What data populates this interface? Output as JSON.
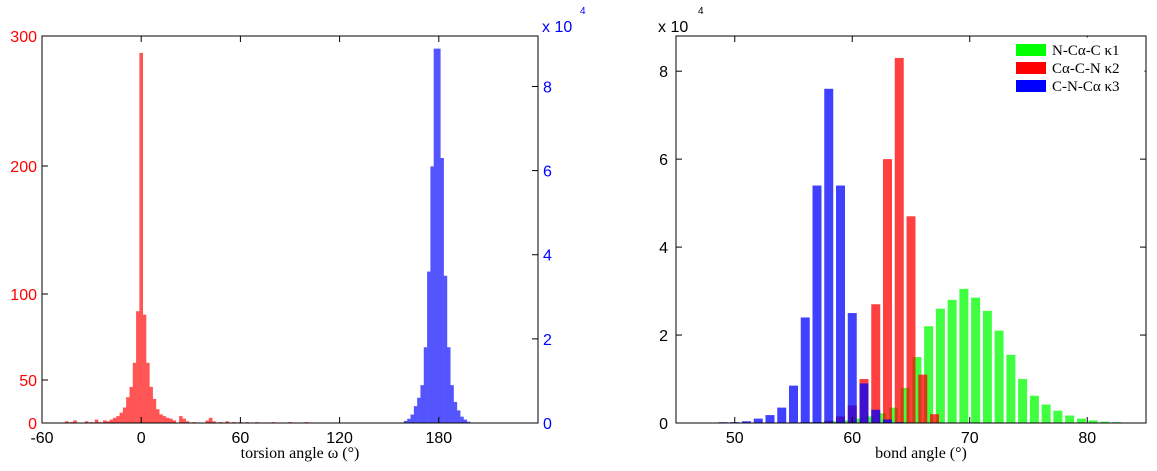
{
  "chart_data": [
    {
      "type": "bar",
      "xlabel": "torsion angle ω (°)",
      "xlim": [
        -60,
        240
      ],
      "xticks": [
        "-60",
        "0",
        "60",
        "120",
        "180"
      ],
      "xtick_values": [
        -60,
        0,
        60,
        120,
        180
      ],
      "colors": {
        "left": "#ff0000",
        "right": "#0000ff"
      },
      "left_axis": {
        "color": "#ff0000",
        "ylim": [
          0,
          300
        ],
        "scale": "nonlinear",
        "yticks": [
          "0",
          "50",
          "100",
          "200",
          "300"
        ],
        "ytick_values": [
          0,
          50,
          100,
          200,
          300
        ]
      },
      "right_axis": {
        "color": "#0000ff",
        "ylim": [
          0,
          9.2
        ],
        "multiplier": "x 10",
        "exponent": "4",
        "yticks": [
          "0",
          "2",
          "4",
          "6",
          "8"
        ],
        "ytick_values": [
          0,
          2,
          4,
          6,
          8
        ]
      },
      "series": [
        {
          "axis": "left",
          "color": "#ff5555",
          "x": [
            -45,
            -42,
            -40,
            -33,
            -30,
            -27,
            -25,
            -22,
            -20,
            -18,
            -16,
            -14,
            -12,
            -10,
            -8,
            -6,
            -4,
            -2,
            0,
            2,
            4,
            6,
            8,
            10,
            12,
            14,
            16,
            18,
            20,
            24,
            26,
            28,
            32,
            40,
            42,
            44,
            48,
            52,
            56,
            60,
            64,
            70,
            80,
            90,
            100
          ],
          "values": [
            2,
            1,
            3,
            2,
            1,
            4,
            1,
            3,
            2,
            4,
            6,
            8,
            12,
            18,
            30,
            42,
            60,
            90,
            287,
            88,
            60,
            42,
            28,
            16,
            10,
            8,
            6,
            5,
            3,
            8,
            5,
            2,
            1,
            3,
            6,
            2,
            1,
            2,
            1,
            1,
            1,
            1,
            1,
            1,
            1
          ]
        },
        {
          "axis": "right",
          "color": "#5555ff",
          "x": [
            160,
            162,
            164,
            166,
            168,
            170,
            172,
            174,
            176,
            178,
            180,
            182,
            184,
            186,
            188,
            190,
            192,
            194,
            196,
            198
          ],
          "values": [
            0.05,
            0.1,
            0.2,
            0.4,
            0.6,
            0.9,
            1.8,
            3.6,
            6.1,
            8.9,
            8.9,
            6.3,
            3.5,
            1.8,
            0.9,
            0.5,
            0.3,
            0.15,
            0.08,
            0.03
          ]
        }
      ]
    },
    {
      "type": "bar",
      "xlabel": "bond angle (°)",
      "xlim": [
        45,
        85
      ],
      "ylim": [
        0,
        8.8
      ],
      "multiplier": "x 10",
      "exponent": "4",
      "xticks": [
        "50",
        "60",
        "70",
        "80"
      ],
      "xtick_values": [
        50,
        60,
        70,
        80
      ],
      "yticks": [
        "0",
        "2",
        "4",
        "6",
        "8"
      ],
      "ytick_values": [
        0,
        2,
        4,
        6,
        8
      ],
      "legend_position": "top-right",
      "series": [
        {
          "name": "N-Cα-C κ1",
          "color": "#00ff00",
          "x": [
            56.5,
            57.5,
            58.5,
            59.5,
            60.5,
            61.5,
            62.5,
            63.5,
            64.5,
            65.5,
            66.5,
            67.5,
            68.5,
            69.5,
            70.5,
            71.5,
            72.5,
            73.5,
            74.5,
            75.5,
            76.5,
            77.5,
            78.5,
            79.5,
            80.5,
            81.5,
            82.5
          ],
          "values": [
            0.01,
            0.02,
            0.04,
            0.06,
            0.1,
            0.15,
            0.22,
            0.35,
            0.8,
            1.5,
            2.2,
            2.6,
            2.8,
            3.05,
            2.85,
            2.55,
            2.1,
            1.55,
            1.0,
            0.62,
            0.42,
            0.28,
            0.17,
            0.1,
            0.06,
            0.03,
            0.02
          ]
        },
        {
          "name": "Cα-C-N κ2",
          "color": "#ff0000",
          "x": [
            56,
            57,
            58,
            59,
            60,
            61,
            62,
            63,
            64,
            65,
            66,
            67
          ],
          "values": [
            0.01,
            0.02,
            0.05,
            0.15,
            0.4,
            1.0,
            2.7,
            6.0,
            8.3,
            4.7,
            1.1,
            0.2
          ]
        },
        {
          "name": "C-N-Cα κ3",
          "color": "#0000ff",
          "x": [
            49,
            50,
            51,
            52,
            53,
            54,
            55,
            56,
            57,
            58,
            59,
            60,
            61,
            62,
            63,
            64
          ],
          "values": [
            0.01,
            0.02,
            0.04,
            0.1,
            0.18,
            0.35,
            0.85,
            2.4,
            5.4,
            7.6,
            5.4,
            2.5,
            0.9,
            0.3,
            0.08,
            0.02
          ]
        }
      ]
    }
  ]
}
